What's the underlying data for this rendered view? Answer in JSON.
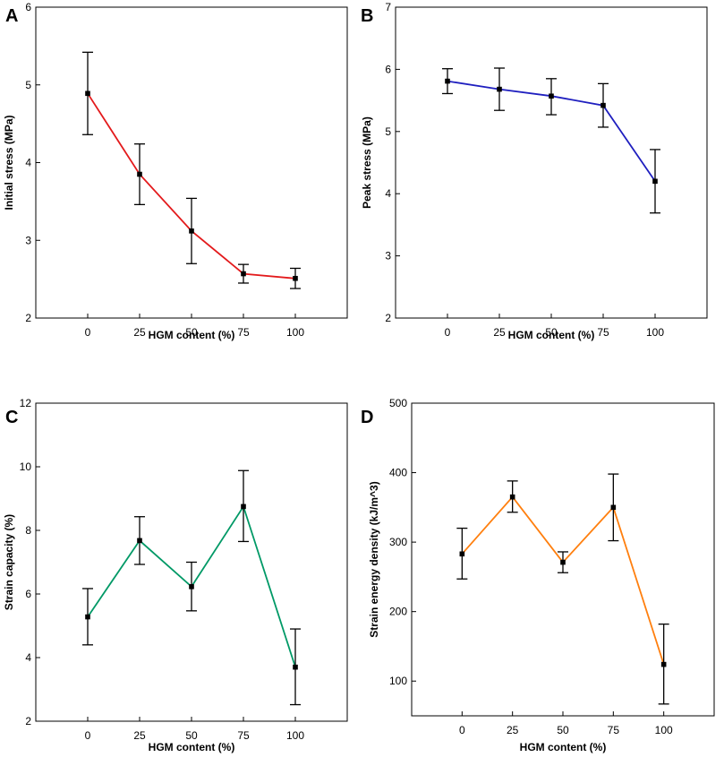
{
  "figure": {
    "description": "HGM content effects"
  },
  "chart_data": [
    {
      "panel": "A",
      "type": "line",
      "title": "",
      "xlabel": "HGM content (%)",
      "ylabel": "Initial stress (MPa)",
      "categories": [
        "0",
        "25",
        "50",
        "75",
        "100"
      ],
      "x": [
        0,
        25,
        50,
        75,
        100
      ],
      "xlim": [
        -25,
        125
      ],
      "ylim": [
        2,
        6
      ],
      "yticks": [
        2,
        3,
        4,
        5,
        6
      ],
      "ytick_labels": [
        "2",
        "3",
        "4",
        "5",
        "6"
      ],
      "color": "#e31a1c",
      "series": [
        {
          "name": "Initial stress",
          "values": [
            4.89,
            3.85,
            3.12,
            2.57,
            2.51
          ],
          "err_low": [
            4.36,
            3.46,
            2.7,
            2.45,
            2.38
          ],
          "err_high": [
            5.42,
            4.24,
            3.54,
            2.69,
            2.64
          ]
        }
      ]
    },
    {
      "panel": "B",
      "type": "line",
      "title": "",
      "xlabel": "HGM content (%)",
      "ylabel": "Peak stress (MPa)",
      "categories": [
        "0",
        "25",
        "50",
        "75",
        "100"
      ],
      "x": [
        0,
        25,
        50,
        75,
        100
      ],
      "xlim": [
        -25,
        125
      ],
      "ylim": [
        2,
        7
      ],
      "yticks": [
        2,
        3,
        4,
        5,
        6,
        7
      ],
      "ytick_labels": [
        "2",
        "3",
        "4",
        "5",
        "6",
        "7"
      ],
      "color": "#1f1fbf",
      "series": [
        {
          "name": "Peak stress",
          "values": [
            5.81,
            5.68,
            5.57,
            5.42,
            4.2
          ],
          "err_low": [
            5.61,
            5.34,
            5.27,
            5.07,
            3.69
          ],
          "err_high": [
            6.01,
            6.02,
            5.85,
            5.77,
            4.71
          ]
        }
      ]
    },
    {
      "panel": "C",
      "type": "line",
      "title": "",
      "xlabel": "HGM content (%)",
      "ylabel": "Strain capacity (%)",
      "categories": [
        "0",
        "25",
        "50",
        "75",
        "100"
      ],
      "x": [
        0,
        25,
        50,
        75,
        100
      ],
      "xlim": [
        -25,
        125
      ],
      "ylim": [
        2,
        12
      ],
      "yticks": [
        2,
        4,
        6,
        8,
        10,
        12
      ],
      "ytick_labels": [
        "2",
        "4",
        "6",
        "8",
        "10",
        "12"
      ],
      "color": "#009966",
      "series": [
        {
          "name": "Strain capacity",
          "values": [
            5.28,
            7.68,
            6.23,
            8.75,
            3.7
          ],
          "err_low": [
            4.4,
            6.93,
            5.47,
            7.65,
            2.52
          ],
          "err_high": [
            6.17,
            8.43,
            7.0,
            9.88,
            4.9
          ]
        }
      ]
    },
    {
      "panel": "D",
      "type": "line",
      "title": "",
      "xlabel": "HGM content (%)",
      "ylabel": "Strain energy density (kJ/m^3)",
      "categories": [
        "0",
        "25",
        "50",
        "75",
        "100"
      ],
      "x": [
        0,
        25,
        50,
        75,
        100
      ],
      "xlim": [
        -25,
        125
      ],
      "ylim": [
        50,
        500
      ],
      "yticks": [
        100,
        200,
        300,
        400,
        500
      ],
      "ytick_labels": [
        "100",
        "200",
        "300",
        "400",
        "500"
      ],
      "color": "#ff7f0e",
      "series": [
        {
          "name": "Strain energy density",
          "values": [
            283,
            365,
            271,
            350,
            124
          ],
          "err_low": [
            247,
            343,
            256,
            302,
            67
          ],
          "err_high": [
            320,
            388,
            286,
            398,
            182
          ]
        }
      ]
    }
  ]
}
